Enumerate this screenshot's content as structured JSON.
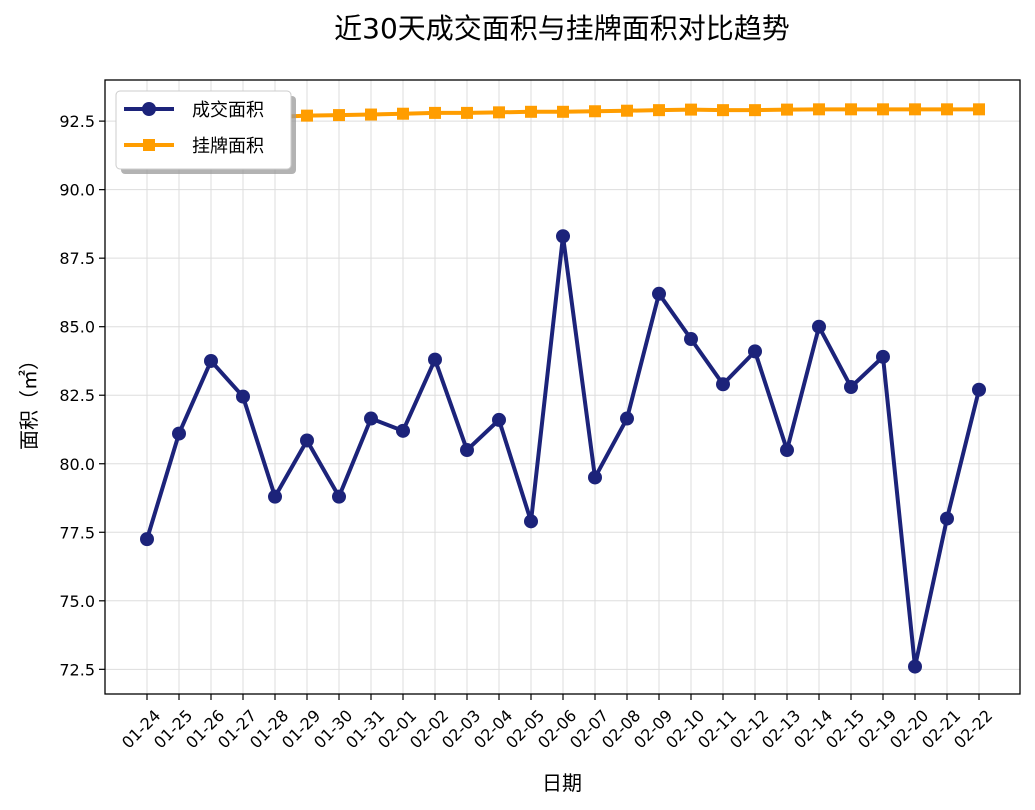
{
  "chart_data": {
    "type": "line",
    "title": "近30天成交面积与挂牌面积对比趋势",
    "xlabel": "日期",
    "ylabel": "面积（㎡）",
    "categories": [
      "01-24",
      "01-25",
      "01-26",
      "01-27",
      "01-28",
      "01-29",
      "01-30",
      "01-31",
      "02-01",
      "02-02",
      "02-03",
      "02-04",
      "02-05",
      "02-06",
      "02-07",
      "02-08",
      "02-09",
      "02-10",
      "02-11",
      "02-12",
      "02-13",
      "02-14",
      "02-15",
      "02-19",
      "02-20",
      "02-21",
      "02-22"
    ],
    "yticks": [
      "72.5",
      "75.0",
      "77.5",
      "80.0",
      "82.5",
      "85.0",
      "87.5",
      "90.0",
      "92.5"
    ],
    "ylim": [
      71.6,
      94.0
    ],
    "grid": true,
    "legend_position": "top-left",
    "series": [
      {
        "name": "成交面积",
        "color": "#1c237a",
        "marker": "circle",
        "values": [
          77.25,
          81.1,
          83.75,
          82.45,
          78.8,
          80.85,
          78.8,
          81.65,
          81.2,
          83.8,
          80.5,
          81.6,
          77.9,
          88.3,
          79.5,
          81.65,
          86.2,
          84.55,
          82.9,
          84.1,
          80.5,
          85.0,
          82.8,
          83.9,
          72.6,
          78.0,
          82.7
        ]
      },
      {
        "name": "挂牌面积",
        "color": "#ff9d00",
        "marker": "square",
        "values": [
          92.45,
          92.55,
          92.6,
          92.62,
          92.65,
          92.7,
          92.72,
          92.74,
          92.77,
          92.8,
          92.8,
          92.82,
          92.84,
          92.84,
          92.86,
          92.88,
          92.9,
          92.92,
          92.9,
          92.9,
          92.92,
          92.93,
          92.93,
          92.93,
          92.93,
          92.93,
          92.93
        ]
      }
    ]
  }
}
